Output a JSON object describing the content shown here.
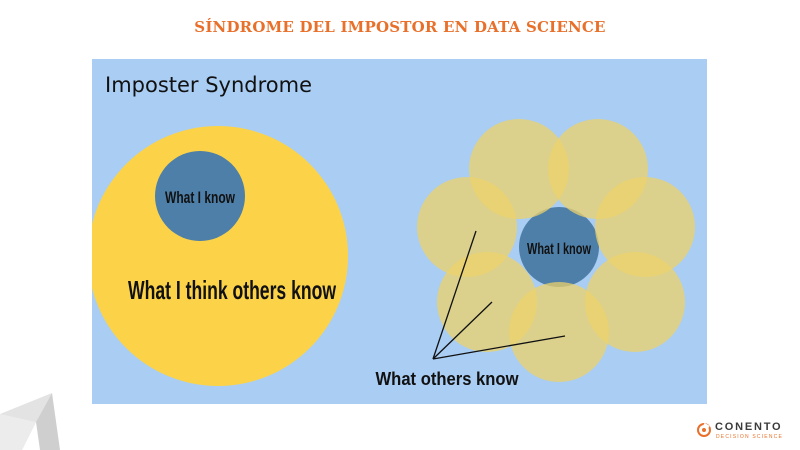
{
  "header": {
    "title": "SÍNDROME DEL IMPOSTOR EN DATA SCIENCE"
  },
  "diagram": {
    "title": "Imposter Syndrome",
    "left": {
      "inner_label": "What I know",
      "outer_label": "What I think others know"
    },
    "right": {
      "center_label": "What I know",
      "petals_label": "What others know"
    },
    "colors": {
      "background": "#a9cdf3",
      "big_circle": "#fcd348",
      "know_circle": "#4e7fa9",
      "petal": "#ecd26b"
    }
  },
  "footer": {
    "brand_name": "CONENTO",
    "brand_sub": "DECISION SCIENCE"
  }
}
